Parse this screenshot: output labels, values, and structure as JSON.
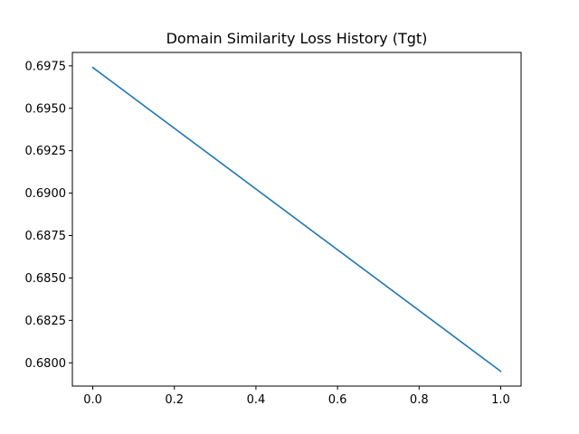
{
  "chart_data": {
    "type": "line",
    "title": "Domain Similarity Loss History (Tgt)",
    "xlabel": "",
    "ylabel": "",
    "xlim": [
      -0.05,
      1.05
    ],
    "ylim": [
      0.67863,
      0.69829
    ],
    "x_ticks": [
      0.0,
      0.2,
      0.4,
      0.6,
      0.8,
      1.0
    ],
    "x_tick_labels": [
      "0.0",
      "0.2",
      "0.4",
      "0.6",
      "0.8",
      "1.0"
    ],
    "y_ticks": [
      0.68,
      0.6825,
      0.685,
      0.6875,
      0.69,
      0.6925,
      0.695,
      0.6975
    ],
    "y_tick_labels": [
      "0.6800",
      "0.6825",
      "0.6850",
      "0.6875",
      "0.6900",
      "0.6925",
      "0.6950",
      "0.6975"
    ],
    "grid": false,
    "series": [
      {
        "color": "#1f77b4",
        "x": [
          0.0,
          1.0
        ],
        "y": [
          0.6974,
          0.6795
        ]
      }
    ]
  }
}
